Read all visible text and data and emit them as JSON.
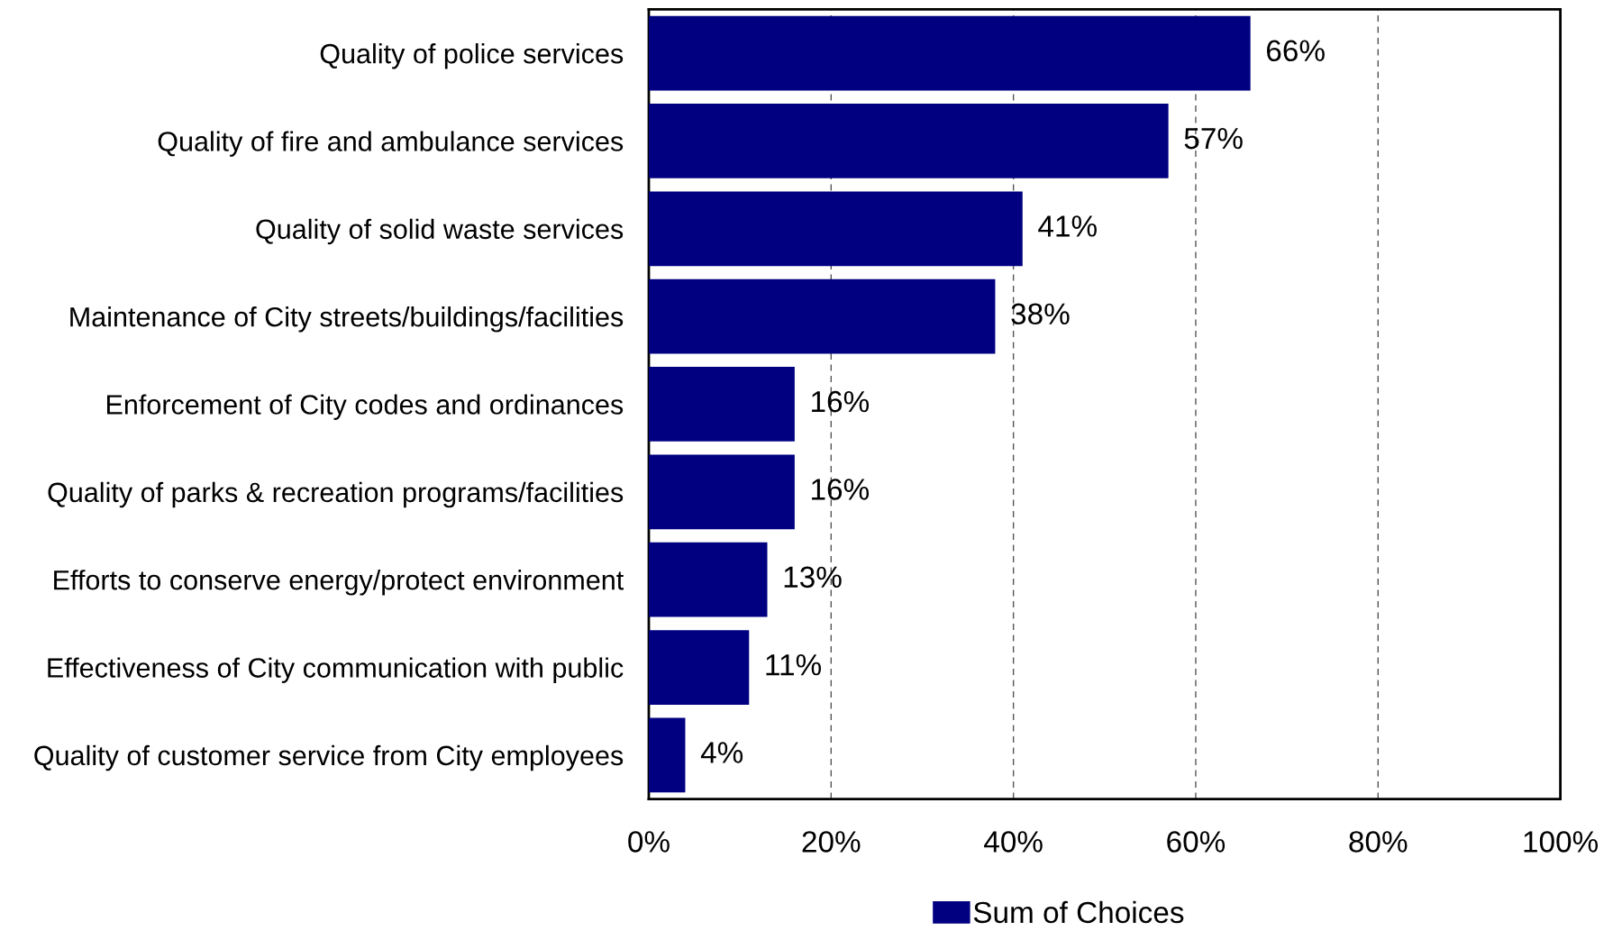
{
  "chart_data": {
    "type": "bar",
    "orientation": "horizontal",
    "categories": [
      "Quality of police services",
      "Quality of fire and ambulance services",
      "Quality of solid waste services",
      "Maintenance of City streets/buildings/facilities",
      "Enforcement of City codes and ordinances",
      "Quality of parks & recreation programs/facilities",
      "Efforts to conserve energy/protect environment",
      "Effectiveness of City communication with public",
      "Quality of customer service from City employees"
    ],
    "series": [
      {
        "name": "Sum of Choices",
        "color": "#000080",
        "values": [
          66,
          57,
          41,
          38,
          16,
          16,
          13,
          11,
          4
        ],
        "value_labels": [
          "66%",
          "57%",
          "41%",
          "38%",
          "16%",
          "16%",
          "13%",
          "11%",
          "4%"
        ]
      }
    ],
    "xlim": [
      0,
      100
    ],
    "xticks": [
      {
        "value": 0,
        "label": "0%"
      },
      {
        "value": 20,
        "label": "20%"
      },
      {
        "value": 40,
        "label": "40%"
      },
      {
        "value": 60,
        "label": "60%"
      },
      {
        "value": 80,
        "label": "80%"
      },
      {
        "value": 100,
        "label": "100%"
      }
    ],
    "grid": "x",
    "legend": "bottom"
  }
}
